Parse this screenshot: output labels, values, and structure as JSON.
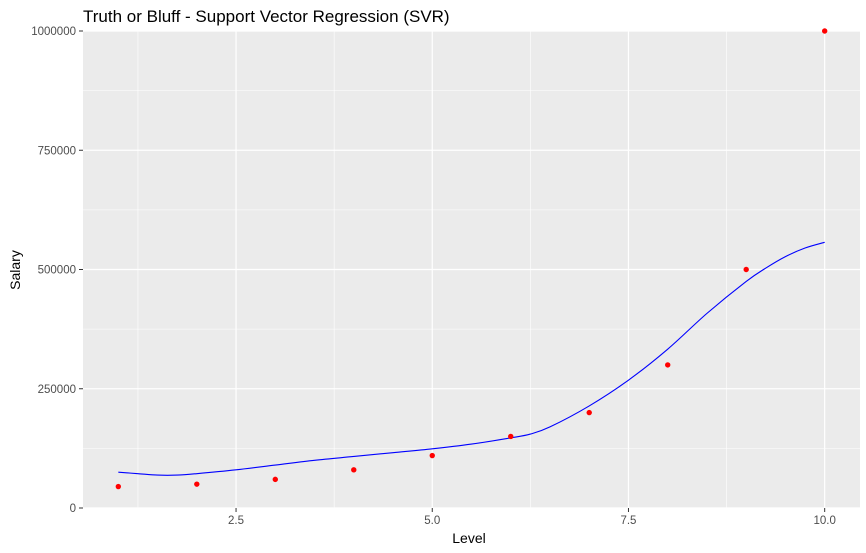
{
  "chart_data": {
    "type": "scatter",
    "title": "Truth or Bluff - Support Vector Regression (SVR)",
    "xlabel": "Level",
    "ylabel": "Salary",
    "xlim": [
      0.55,
      10.45
    ],
    "ylim": [
      0,
      1000000
    ],
    "x_ticks": [
      2.5,
      5.0,
      7.5,
      10.0
    ],
    "x_tick_labels": [
      "2.5",
      "5.0",
      "7.5",
      "10.0"
    ],
    "y_ticks": [
      0,
      250000,
      500000,
      750000,
      1000000
    ],
    "y_tick_labels": [
      "0",
      "250000",
      "500000",
      "750000",
      "1000000"
    ],
    "grid": true,
    "legend": "none",
    "background_color": "#EBEBEB",
    "gridline_color": "#FFFFFF",
    "series": [
      {
        "type": "scatter",
        "color": "#FF0000",
        "x": [
          1,
          2,
          3,
          4,
          5,
          6,
          7,
          8,
          9,
          10
        ],
        "y": [
          45000,
          50000,
          60000,
          80000,
          110000,
          150000,
          200000,
          300000,
          500000,
          1000000
        ]
      },
      {
        "type": "line",
        "color": "#0000FF",
        "x": [
          1.0,
          1.25,
          1.5,
          1.75,
          2.0,
          2.5,
          3.0,
          3.5,
          4.0,
          4.5,
          5.0,
          5.5,
          6.0,
          6.25,
          6.5,
          7.0,
          7.5,
          8.0,
          8.5,
          9.0,
          9.25,
          9.5,
          9.75,
          10.0
        ],
        "y": [
          75000,
          72000,
          69000,
          69000,
          72000,
          80000,
          90000,
          100000,
          108000,
          116000,
          124000,
          134000,
          147000,
          155000,
          170000,
          214000,
          268000,
          333000,
          408000,
          475000,
          503000,
          527000,
          545000,
          557000
        ]
      }
    ]
  }
}
